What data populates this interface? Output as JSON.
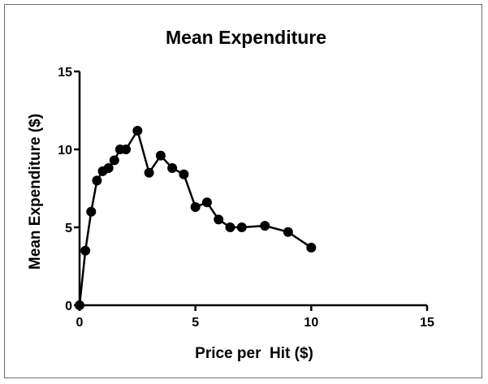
{
  "chart_data": {
    "type": "line",
    "title": "Mean Expenditure",
    "xlabel": "Price per  Hit ($)",
    "ylabel": "Mean Expenditure ($)",
    "xlim": [
      0,
      15
    ],
    "ylim": [
      0,
      15
    ],
    "xticks": [
      0,
      5,
      10,
      15
    ],
    "yticks": [
      0,
      5,
      10,
      15
    ],
    "grid": false,
    "legend": "none",
    "series": [
      {
        "color": "#000000",
        "marker": "circle",
        "x": [
          0,
          0.25,
          0.5,
          0.75,
          1,
          1.25,
          1.5,
          1.75,
          2,
          2.5,
          3,
          3.5,
          4,
          4.5,
          5,
          5.5,
          6,
          6.5,
          7,
          8,
          9,
          10
        ],
        "y": [
          0,
          3.5,
          6.0,
          8.0,
          8.6,
          8.8,
          9.3,
          10.0,
          10.0,
          11.2,
          8.5,
          9.6,
          8.8,
          8.4,
          6.3,
          6.6,
          5.5,
          5.0,
          5.0,
          5.1,
          4.7,
          3.7
        ]
      }
    ]
  }
}
